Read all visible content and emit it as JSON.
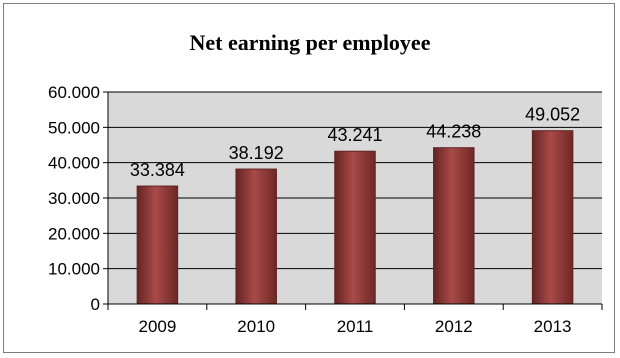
{
  "chart_data": {
    "type": "bar",
    "title": "Net earning per employee",
    "categories": [
      "2009",
      "2010",
      "2011",
      "2012",
      "2013"
    ],
    "values": [
      33384,
      38192,
      43241,
      44238,
      49052
    ],
    "data_labels": [
      "33.384",
      "38.192",
      "43.241",
      "44.238",
      "49.052"
    ],
    "y_ticks": [
      "0",
      "10.000",
      "20.000",
      "30.000",
      "40.000",
      "50.000",
      "60.000"
    ],
    "ylim": [
      0,
      60000
    ],
    "xlabel": "",
    "ylabel": "",
    "grid": true,
    "legend": "none",
    "colors": {
      "bar": "#953735",
      "bar_dark": "#632523",
      "plot_bg": "#d9d9d9",
      "gridline": "#000000"
    }
  }
}
